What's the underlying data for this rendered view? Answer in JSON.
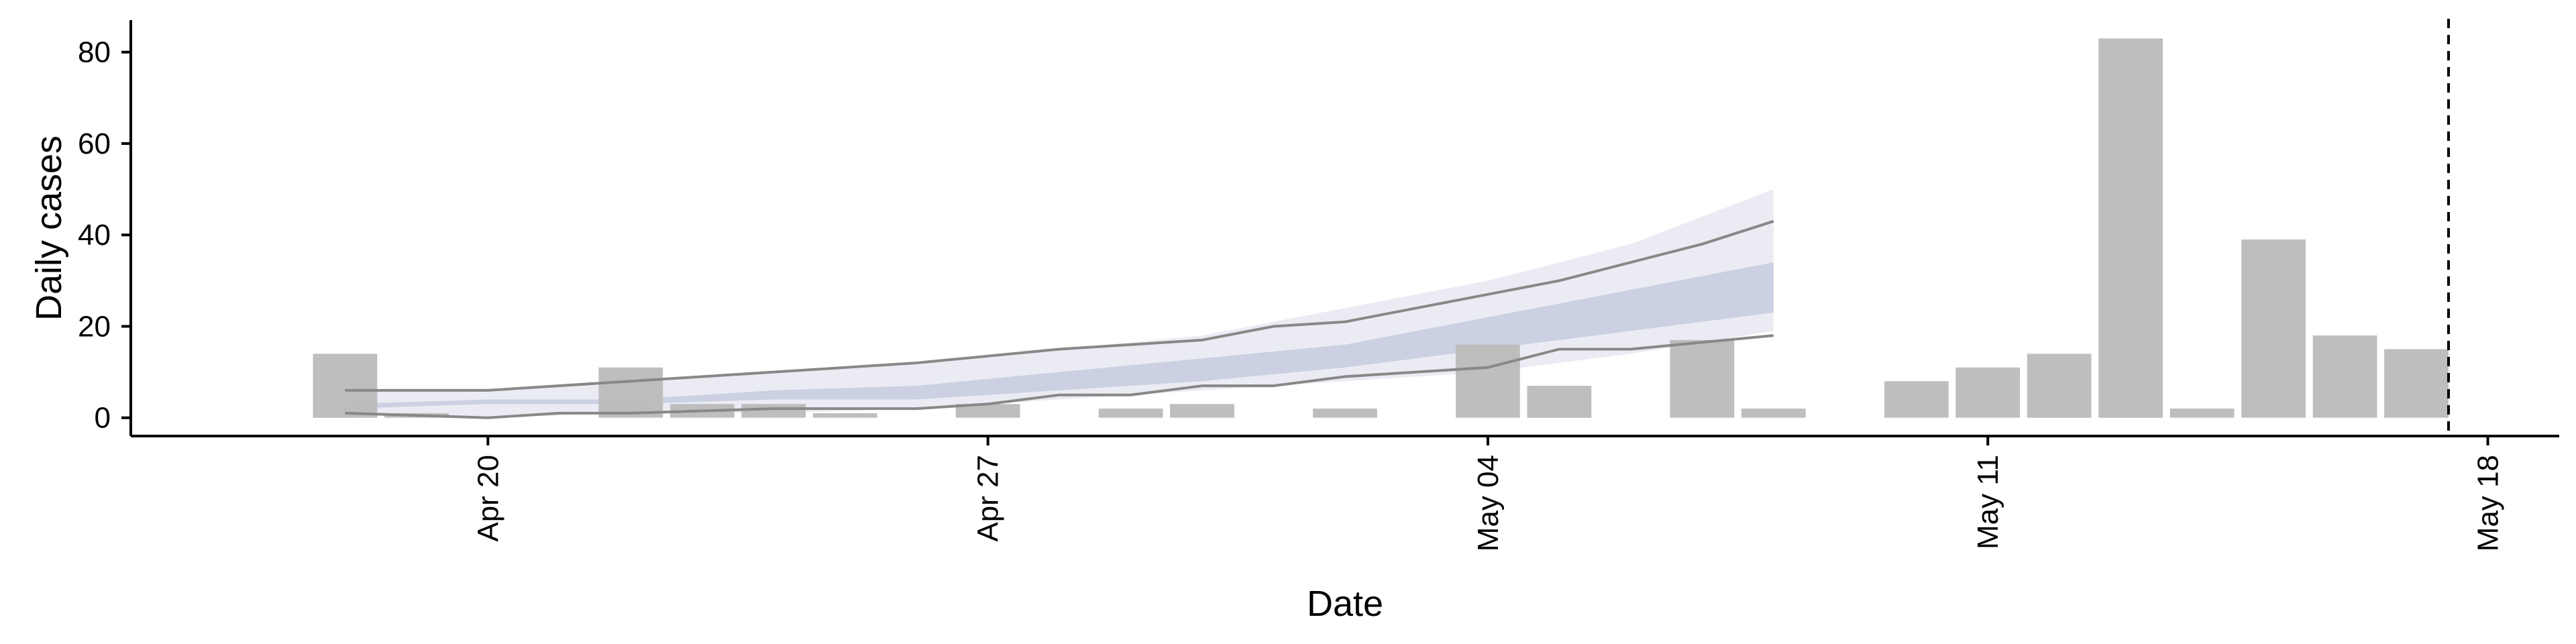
{
  "chart_data": {
    "type": "bar",
    "xlabel": "Date",
    "ylabel": "Daily cases",
    "ylim": [
      -4,
      87
    ],
    "yticks": [
      0,
      20,
      40,
      60,
      80
    ],
    "xlim": [
      "2020-04-15",
      "2020-05-19"
    ],
    "xticks": [
      {
        "date": "2020-04-20",
        "label": "Apr 20"
      },
      {
        "date": "2020-04-27",
        "label": "Apr 27"
      },
      {
        "date": "2020-05-04",
        "label": "May 04"
      },
      {
        "date": "2020-05-11",
        "label": "May 11"
      },
      {
        "date": "2020-05-18",
        "label": "May 18"
      }
    ],
    "xtick_rotation": 90,
    "bars": [
      {
        "date": "2020-04-18",
        "value": 14
      },
      {
        "date": "2020-04-19",
        "value": 1
      },
      {
        "date": "2020-04-22",
        "value": 11
      },
      {
        "date": "2020-04-23",
        "value": 3
      },
      {
        "date": "2020-04-24",
        "value": 3
      },
      {
        "date": "2020-04-25",
        "value": 1
      },
      {
        "date": "2020-04-27",
        "value": 3
      },
      {
        "date": "2020-04-29",
        "value": 2
      },
      {
        "date": "2020-04-30",
        "value": 3
      },
      {
        "date": "2020-05-02",
        "value": 2
      },
      {
        "date": "2020-05-04",
        "value": 16
      },
      {
        "date": "2020-05-05",
        "value": 7
      },
      {
        "date": "2020-05-07",
        "value": 17
      },
      {
        "date": "2020-05-08",
        "value": 2
      },
      {
        "date": "2020-05-10",
        "value": 8
      },
      {
        "date": "2020-05-11",
        "value": 11
      },
      {
        "date": "2020-05-12",
        "value": 14
      },
      {
        "date": "2020-05-13",
        "value": 83
      },
      {
        "date": "2020-05-14",
        "value": 2
      },
      {
        "date": "2020-05-15",
        "value": 39
      },
      {
        "date": "2020-05-16",
        "value": 18
      },
      {
        "date": "2020-05-17",
        "value": 15
      }
    ],
    "bands": {
      "dates": [
        "2020-04-18",
        "2020-04-20",
        "2020-04-22",
        "2020-04-24",
        "2020-04-26",
        "2020-04-28",
        "2020-04-30",
        "2020-05-02",
        "2020-05-04",
        "2020-05-06",
        "2020-05-08"
      ],
      "outer_upper": [
        6,
        6,
        8,
        10,
        12,
        15,
        18,
        24,
        30,
        38,
        50
      ],
      "outer_lower": [
        1,
        0,
        1,
        1,
        2,
        4,
        6,
        8,
        10,
        14,
        19
      ],
      "inner_upper": [
        3,
        4,
        4,
        6,
        7,
        10,
        13,
        16,
        22,
        28,
        34
      ],
      "inner_lower": [
        2,
        3,
        3,
        4,
        4,
        6,
        8,
        11,
        15,
        19,
        23
      ],
      "line_upper": [
        {
          "date": "2020-04-18",
          "value": 6
        },
        {
          "date": "2020-04-20",
          "value": 6
        },
        {
          "date": "2020-04-22",
          "value": 8
        },
        {
          "date": "2020-04-24",
          "value": 10
        },
        {
          "date": "2020-04-26",
          "value": 12
        },
        {
          "date": "2020-04-28",
          "value": 15
        },
        {
          "date": "2020-04-29",
          "value": 16
        },
        {
          "date": "2020-04-30",
          "value": 17
        },
        {
          "date": "2020-05-01",
          "value": 20
        },
        {
          "date": "2020-05-02",
          "value": 21
        },
        {
          "date": "2020-05-04",
          "value": 27
        },
        {
          "date": "2020-05-05",
          "value": 30
        },
        {
          "date": "2020-05-07",
          "value": 38
        },
        {
          "date": "2020-05-08",
          "value": 43
        }
      ],
      "line_lower": [
        {
          "date": "2020-04-18",
          "value": 1
        },
        {
          "date": "2020-04-20",
          "value": 0
        },
        {
          "date": "2020-04-21",
          "value": 1
        },
        {
          "date": "2020-04-22",
          "value": 1
        },
        {
          "date": "2020-04-24",
          "value": 2
        },
        {
          "date": "2020-04-26",
          "value": 2
        },
        {
          "date": "2020-04-27",
          "value": 3
        },
        {
          "date": "2020-04-28",
          "value": 5
        },
        {
          "date": "2020-04-29",
          "value": 5
        },
        {
          "date": "2020-04-30",
          "value": 7
        },
        {
          "date": "2020-05-01",
          "value": 7
        },
        {
          "date": "2020-05-02",
          "value": 9
        },
        {
          "date": "2020-05-04",
          "value": 11
        },
        {
          "date": "2020-05-05",
          "value": 15
        },
        {
          "date": "2020-05-06",
          "value": 15
        },
        {
          "date": "2020-05-08",
          "value": 18
        }
      ]
    },
    "reference_line": {
      "date": "2020-05-17",
      "style": "dashed"
    },
    "grid": false,
    "colors": {
      "bar": "#bababa",
      "outer_band": "#e8e9f1",
      "inner_band": "#c8cde0",
      "line_upper": "#888888",
      "line_lower": "#888888",
      "axis": "#000000",
      "reference_line": "#000000"
    }
  }
}
